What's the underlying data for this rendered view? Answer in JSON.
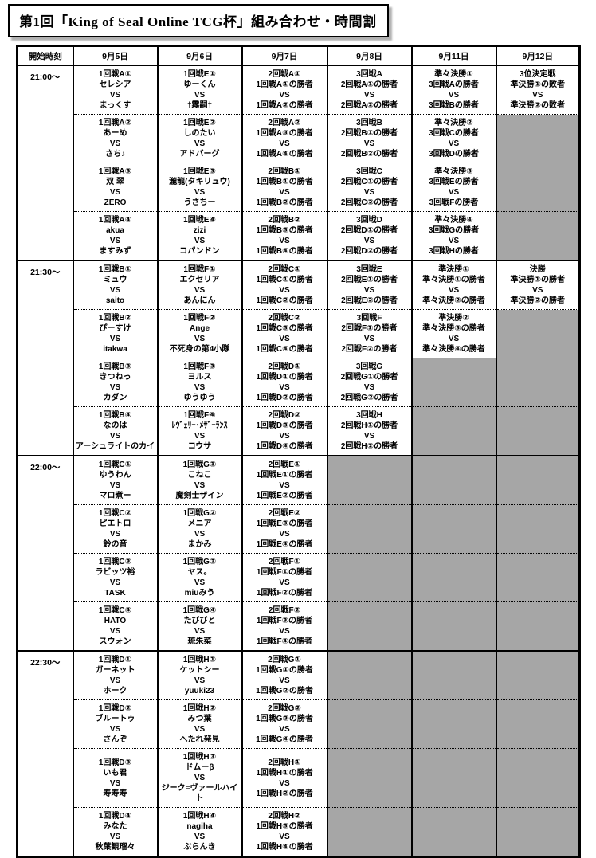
{
  "title": "第1回「King of Seal Online TCG杯」組み合わせ・時間割",
  "colors": {
    "empty_cell": "#a6a6a6",
    "border": "#000000",
    "shadow": "#b0b0b0"
  },
  "table": {
    "header": [
      "開始時刻",
      "9月5日",
      "9月6日",
      "9月7日",
      "9月8日",
      "9月11日",
      "9月12日"
    ],
    "blocks": [
      {
        "time": "21:00～",
        "cells": [
          [
            [
              "1回戦A①",
              "セレシア",
              "VS",
              "まっくす"
            ],
            [
              "1回戦A②",
              "あーめ",
              "VS",
              "さち♪"
            ],
            [
              "1回戦A③",
              "双 翠",
              "VS",
              "ZERO"
            ],
            [
              "1回戦A④",
              "akua",
              "VS",
              "ますみず"
            ]
          ],
          [
            [
              "1回戦E①",
              "ゆーくん",
              "VS",
              "†霧嗣†"
            ],
            [
              "1回戦E②",
              "しのたい",
              "VS",
              "アドバーグ"
            ],
            [
              "1回戦E③",
              "瀧龍(タキリュウ)",
              "VS",
              "うさちー"
            ],
            [
              "1回戦E④",
              "zizi",
              "VS",
              "コパンドン"
            ]
          ],
          [
            [
              "2回戦A①",
              "1回戦A①の勝者",
              "VS",
              "1回戦A②の勝者"
            ],
            [
              "2回戦A②",
              "1回戦A③の勝者",
              "VS",
              "1回戦A④の勝者"
            ],
            [
              "2回戦B①",
              "1回戦B①の勝者",
              "VS",
              "1回戦B②の勝者"
            ],
            [
              "2回戦B②",
              "1回戦B③の勝者",
              "VS",
              "1回戦B④の勝者"
            ]
          ],
          [
            [
              "3回戦A",
              "2回戦A①の勝者",
              "VS",
              "2回戦A②の勝者"
            ],
            [
              "3回戦B",
              "2回戦B①の勝者",
              "VS",
              "2回戦B②の勝者"
            ],
            [
              "3回戦C",
              "2回戦C①の勝者",
              "VS",
              "2回戦C②の勝者"
            ],
            [
              "3回戦D",
              "2回戦D①の勝者",
              "VS",
              "2回戦D②の勝者"
            ]
          ],
          [
            [
              "準々決勝①",
              "3回戦Aの勝者",
              "VS",
              "3回戦Bの勝者"
            ],
            [
              "準々決勝②",
              "3回戦Cの勝者",
              "VS",
              "3回戦Dの勝者"
            ],
            [
              "準々決勝③",
              "3回戦Eの勝者",
              "VS",
              "3回戦Fの勝者"
            ],
            [
              "準々決勝④",
              "3回戦Gの勝者",
              "VS",
              "3回戦Hの勝者"
            ]
          ],
          [
            [
              "3位決定戦",
              "準決勝①の敗者",
              "VS",
              "準決勝②の敗者"
            ],
            null,
            null,
            null
          ]
        ]
      },
      {
        "time": "21:30～",
        "cells": [
          [
            [
              "1回戦B①",
              "ミュウ",
              "VS",
              "saito"
            ],
            [
              "1回戦B②",
              "ぴーすけ",
              "VS",
              "itakwa"
            ],
            [
              "1回戦B③",
              "きつねっ",
              "VS",
              "カダン"
            ],
            [
              "1回戦B④",
              "なのは",
              "VS",
              "アーシュライトのカイ"
            ]
          ],
          [
            [
              "1回戦F①",
              "エクセリア",
              "VS",
              "あんにん"
            ],
            [
              "1回戦F②",
              "Ange",
              "VS",
              "不死身の第4小隊"
            ],
            [
              "1回戦F③",
              "ヨルス",
              "VS",
              "ゆうゆう"
            ],
            [
              "1回戦F④",
              "ﾚｳﾞｪﾘｰ･ﾒｻﾞｰﾗﾝｽ",
              "VS",
              "コウサ"
            ]
          ],
          [
            [
              "2回戦C①",
              "1回戦C①の勝者",
              "VS",
              "1回戦C②の勝者"
            ],
            [
              "2回戦C②",
              "1回戦C③の勝者",
              "VS",
              "1回戦C④の勝者"
            ],
            [
              "2回戦D①",
              "1回戦D①の勝者",
              "VS",
              "1回戦D②の勝者"
            ],
            [
              "2回戦D②",
              "1回戦D③の勝者",
              "VS",
              "1回戦D④の勝者"
            ]
          ],
          [
            [
              "3回戦E",
              "2回戦E①の勝者",
              "VS",
              "2回戦E②の勝者"
            ],
            [
              "3回戦F",
              "2回戦F①の勝者",
              "VS",
              "2回戦F②の勝者"
            ],
            [
              "3回戦G",
              "2回戦G①の勝者",
              "VS",
              "2回戦G②の勝者"
            ],
            [
              "3回戦H",
              "2回戦H①の勝者",
              "VS",
              "2回戦H②の勝者"
            ]
          ],
          [
            [
              "準決勝①",
              "準々決勝①の勝者",
              "VS",
              "準々決勝②の勝者"
            ],
            [
              "準決勝②",
              "準々決勝③の勝者",
              "VS",
              "準々決勝④の勝者"
            ],
            null,
            null
          ],
          [
            [
              "決勝",
              "準決勝①の勝者",
              "VS",
              "準決勝②の勝者"
            ],
            null,
            null,
            null
          ]
        ]
      },
      {
        "time": "22:00～",
        "cells": [
          [
            [
              "1回戦C①",
              "ゆうわん",
              "VS",
              "マロ煮ー"
            ],
            [
              "1回戦C②",
              "ピエトロ",
              "VS",
              "鈴の音"
            ],
            [
              "1回戦C③",
              "ラビッツ裕",
              "VS",
              "TASK"
            ],
            [
              "1回戦C④",
              "HATO",
              "VS",
              "スウォン"
            ]
          ],
          [
            [
              "1回戦G①",
              "こねこ",
              "VS",
              "魔剣士ザイン"
            ],
            [
              "1回戦G②",
              "メニア",
              "VS",
              "まかみ"
            ],
            [
              "1回戦G③",
              "ヤス。",
              "VS",
              "miuみう"
            ],
            [
              "1回戦G④",
              "たびびと",
              "VS",
              "琉朱菜"
            ]
          ],
          [
            [
              "2回戦E①",
              "1回戦E①の勝者",
              "VS",
              "1回戦E②の勝者"
            ],
            [
              "2回戦E②",
              "1回戦E③の勝者",
              "VS",
              "1回戦E④の勝者"
            ],
            [
              "2回戦F①",
              "1回戦F①の勝者",
              "VS",
              "1回戦F②の勝者"
            ],
            [
              "2回戦F②",
              "1回戦F③の勝者",
              "VS",
              "1回戦F④の勝者"
            ]
          ],
          [
            null,
            null,
            null,
            null
          ],
          [
            null,
            null,
            null,
            null
          ],
          [
            null,
            null,
            null,
            null
          ]
        ]
      },
      {
        "time": "22:30～",
        "cells": [
          [
            [
              "1回戦D①",
              "ガーネット",
              "VS",
              "ホーク"
            ],
            [
              "1回戦D②",
              "ブルートゥ",
              "VS",
              "さんぞ"
            ],
            [
              "1回戦D③",
              "いも君",
              "VS",
              "寿寿寿"
            ],
            [
              "1回戦D④",
              "みなた",
              "VS",
              "秋葉観瑠々"
            ]
          ],
          [
            [
              "1回戦H①",
              "ケットシー",
              "VS",
              "yuuki23"
            ],
            [
              "1回戦H②",
              "みつ葉",
              "VS",
              "へたれ発見"
            ],
            [
              "1回戦H③",
              "ドムーβ",
              "VS",
              "ジーク=ヴァールハイト"
            ],
            [
              "1回戦H④",
              "nagiha",
              "VS",
              "ぶらんき"
            ]
          ],
          [
            [
              "2回戦G①",
              "1回戦G①の勝者",
              "VS",
              "1回戦G②の勝者"
            ],
            [
              "2回戦G②",
              "1回戦G③の勝者",
              "VS",
              "1回戦G④の勝者"
            ],
            [
              "2回戦H①",
              "1回戦H①の勝者",
              "VS",
              "1回戦H②の勝者"
            ],
            [
              "2回戦H②",
              "1回戦H③の勝者",
              "VS",
              "1回戦H④の勝者"
            ]
          ],
          [
            null,
            null,
            null,
            null
          ],
          [
            null,
            null,
            null,
            null
          ],
          [
            null,
            null,
            null,
            null
          ]
        ]
      }
    ]
  }
}
